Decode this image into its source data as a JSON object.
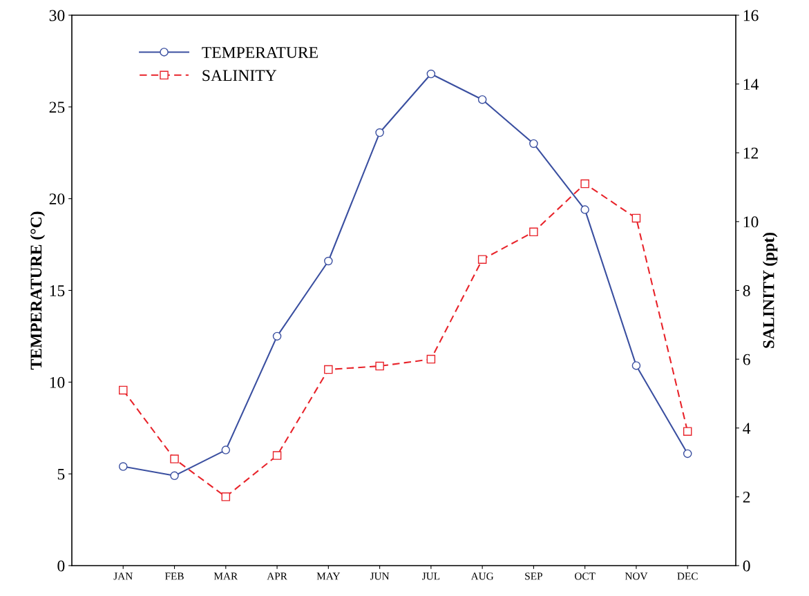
{
  "chart_data": {
    "type": "line",
    "categories": [
      "JAN",
      "FEB",
      "MAR",
      "APR",
      "MAY",
      "JUN",
      "JUL",
      "AUG",
      "SEP",
      "OCT",
      "NOV",
      "DEC"
    ],
    "series": [
      {
        "name": "TEMPERATURE",
        "color": "#3a4fa0",
        "marker": "circle",
        "line_style": "solid",
        "values": [
          5.4,
          4.9,
          6.3,
          12.5,
          16.6,
          23.6,
          26.8,
          25.4,
          23.0,
          19.4,
          10.9,
          6.1
        ]
      },
      {
        "name": "SALINITY",
        "color": "#e8232a",
        "marker": "square",
        "line_style": "dashed",
        "axis": "y2",
        "values": [
          5.1,
          3.1,
          2.0,
          3.2,
          5.7,
          5.8,
          6.0,
          8.9,
          9.7,
          11.1,
          10.1,
          3.9
        ]
      }
    ],
    "ylabel": "TEMPERATURE (°C)",
    "y2label": "SALINITY (ppt)",
    "ylim": [
      0,
      30
    ],
    "yticks": [
      0,
      5,
      10,
      15,
      20,
      25,
      30
    ],
    "y2lim": [
      0,
      16
    ],
    "y2ticks": [
      0,
      2,
      4,
      6,
      8,
      10,
      12,
      14,
      16
    ],
    "grid": false,
    "legend": "top left"
  }
}
